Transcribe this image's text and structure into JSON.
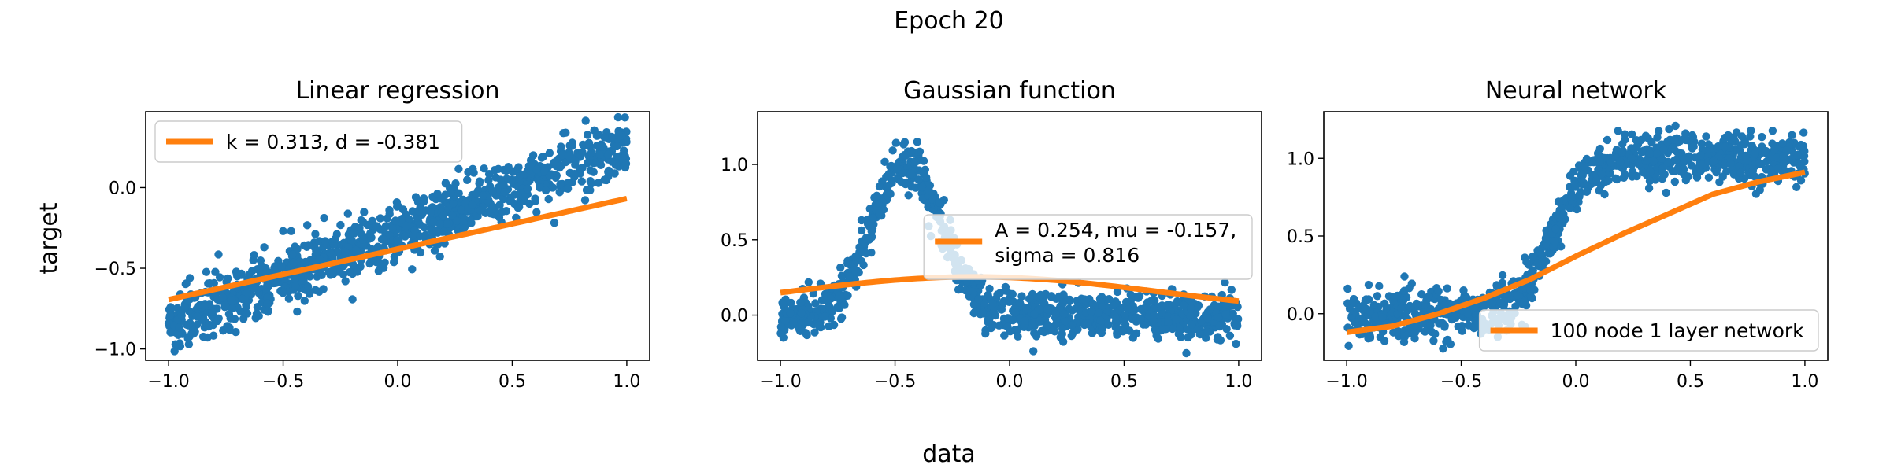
{
  "figure": {
    "suptitle": "Epoch 20",
    "xlabel": "data",
    "ylabel": "target"
  },
  "colors": {
    "scatter": "#1f77b4",
    "fit": "#ff7f0e"
  },
  "chart_data": [
    {
      "type": "scatter",
      "title": "Linear regression",
      "xlim": [
        -1.1,
        1.1
      ],
      "ylim": [
        -1.07,
        0.47
      ],
      "xticks": [
        -1.0,
        -0.5,
        0.0,
        0.5,
        1.0
      ],
      "xtick_labels": [
        "−1.0",
        "−0.5",
        "0.0",
        "0.5",
        "1.0"
      ],
      "yticks": [
        -1.0,
        -0.5,
        0.0
      ],
      "ytick_labels": [
        "−1.0",
        "−0.5",
        "0.0"
      ],
      "legend": {
        "label": "k = 0.313, d = -0.381",
        "placement": "upper left"
      },
      "fit": {
        "kind": "linear",
        "k": 0.313,
        "d": -0.381
      },
      "scatter_model": {
        "kind": "linear",
        "slope": 0.55,
        "intercept": -0.28,
        "noise": 0.09,
        "count": 1000
      }
    },
    {
      "type": "scatter",
      "title": "Gaussian function",
      "xlim": [
        -1.1,
        1.1
      ],
      "ylim": [
        -0.3,
        1.35
      ],
      "xticks": [
        -1.0,
        -0.5,
        0.0,
        0.5,
        1.0
      ],
      "xtick_labels": [
        "−1.0",
        "−0.5",
        "0.0",
        "0.5",
        "1.0"
      ],
      "yticks": [
        0.0,
        0.5,
        1.0
      ],
      "ytick_labels": [
        "0.0",
        "0.5",
        "1.0"
      ],
      "legend": {
        "label": "A = 0.254, mu = -0.157,",
        "label2": "sigma = 0.816",
        "placement": "center right"
      },
      "fit": {
        "kind": "gaussian",
        "A": 0.254,
        "mu": -0.157,
        "sigma": 0.816
      },
      "scatter_model": {
        "kind": "gaussian",
        "A": 1.0,
        "mu": -0.45,
        "sigma": 0.15,
        "noise": 0.08,
        "count": 1000
      }
    },
    {
      "type": "scatter",
      "title": "Neural network",
      "xlim": [
        -1.1,
        1.1
      ],
      "ylim": [
        -0.3,
        1.3
      ],
      "xticks": [
        -1.0,
        -0.5,
        0.0,
        0.5,
        1.0
      ],
      "xtick_labels": [
        "−1.0",
        "−0.5",
        "0.0",
        "0.5",
        "1.0"
      ],
      "yticks": [
        0.0,
        0.5,
        1.0
      ],
      "ytick_labels": [
        "0.0",
        "0.5",
        "1.0"
      ],
      "legend": {
        "label": "100 node 1 layer network",
        "placement": "lower right"
      },
      "fit": {
        "kind": "points",
        "x": [
          -1.0,
          -0.8,
          -0.6,
          -0.4,
          -0.2,
          0.0,
          0.2,
          0.4,
          0.6,
          0.8,
          1.0
        ],
        "y": [
          -0.12,
          -0.08,
          0.0,
          0.1,
          0.22,
          0.37,
          0.51,
          0.64,
          0.77,
          0.85,
          0.91
        ]
      },
      "scatter_model": {
        "kind": "sigmoid",
        "low": 0.0,
        "high": 1.0,
        "center": -0.1,
        "scale": 0.08,
        "noise": 0.08,
        "count": 1000
      }
    }
  ]
}
